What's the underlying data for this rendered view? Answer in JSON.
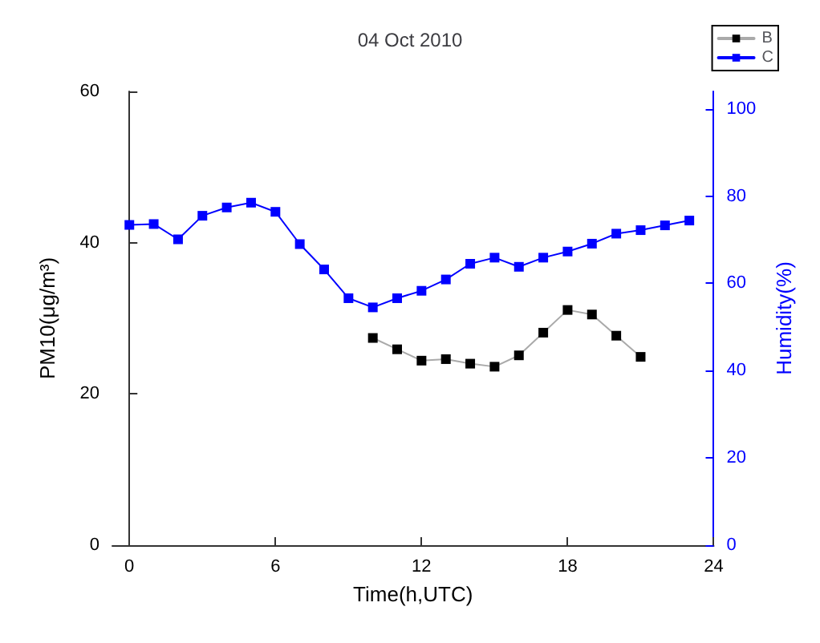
{
  "chart_data": {
    "type": "line",
    "title": "04 Oct 2010",
    "xlabel": "Time(h,UTC)",
    "ylabel": "PM10(μg/m³)",
    "y2label": "Humidity(%)",
    "xlim": [
      -0.7,
      24
    ],
    "xticks": [
      0,
      6,
      12,
      18,
      24
    ],
    "ylim": [
      0,
      60
    ],
    "yticks": [
      0,
      20,
      40,
      60
    ],
    "y2lim": [
      0,
      104
    ],
    "y2ticks": [
      0,
      20,
      40,
      60,
      80,
      100
    ],
    "marker": "square",
    "legend": "top right",
    "grid": false,
    "series": [
      {
        "name": "B",
        "color": "#000000",
        "x": [
          10,
          11,
          12,
          13,
          14,
          15,
          16,
          17,
          18,
          19,
          20,
          21
        ],
        "values": [
          27.4,
          25.9,
          24.4,
          24.6,
          24.0,
          23.6,
          25.1,
          28.1,
          31.1,
          30.5,
          27.7,
          24.9
        ]
      },
      {
        "name": "C",
        "color": "#0000ff",
        "axis": "y2",
        "x": [
          0,
          1,
          2,
          3,
          4,
          5,
          6,
          7,
          8,
          9,
          10,
          11,
          12,
          13,
          14,
          15,
          16,
          17,
          18,
          19,
          20,
          21,
          22,
          23
        ],
        "values": [
          73.4,
          73.6,
          70.1,
          75.5,
          77.4,
          78.5,
          76.4,
          69.0,
          63.2,
          56.6,
          54.5,
          56.6,
          58.3,
          60.9,
          64.5,
          65.9,
          63.8,
          65.9,
          67.3,
          69.1,
          71.4,
          72.2,
          73.3,
          74.4
        ]
      }
    ]
  }
}
